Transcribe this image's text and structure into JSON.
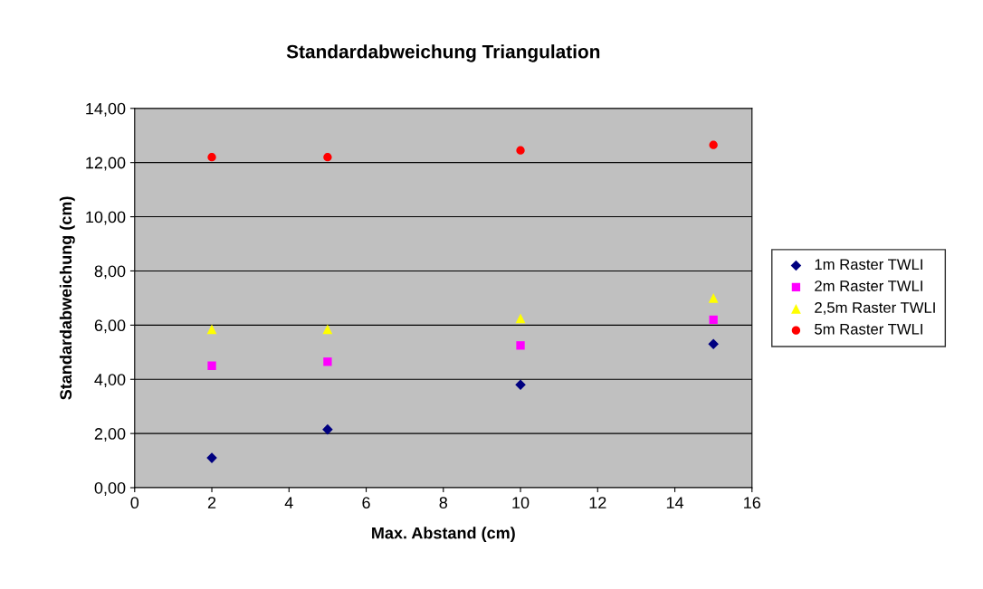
{
  "chart_data": {
    "type": "scatter",
    "title": "Standardabweichung Triangulation",
    "xlabel": "Max. Abstand (cm)",
    "ylabel": "Standardabweichung (cm)",
    "x": [
      2,
      5,
      10,
      15
    ],
    "series": [
      {
        "name": "1m Raster TWLI",
        "color": "#000080",
        "marker": "diamond",
        "values": [
          1.1,
          2.15,
          3.8,
          5.3
        ]
      },
      {
        "name": "2m Raster TWLI",
        "color": "#ff00ff",
        "marker": "square",
        "values": [
          4.5,
          4.65,
          5.25,
          6.2
        ]
      },
      {
        "name": "2,5m Raster TWLI",
        "color": "#ffff00",
        "marker": "triangle",
        "values": [
          5.85,
          5.85,
          6.25,
          7.0
        ]
      },
      {
        "name": "5m Raster TWLI",
        "color": "#ff0000",
        "marker": "circle",
        "values": [
          12.2,
          12.2,
          12.45,
          12.65
        ]
      }
    ],
    "xlim": [
      0,
      16
    ],
    "xticks": [
      0,
      2,
      4,
      6,
      8,
      10,
      12,
      14,
      16
    ],
    "ylim": [
      0,
      14
    ],
    "yticks": [
      {
        "value": 0,
        "label": "0,00"
      },
      {
        "value": 2,
        "label": "2,00"
      },
      {
        "value": 4,
        "label": "4,00"
      },
      {
        "value": 6,
        "label": "6,00"
      },
      {
        "value": 8,
        "label": "8,00"
      },
      {
        "value": 10,
        "label": "10,00"
      },
      {
        "value": 12,
        "label": "12,00"
      },
      {
        "value": 14,
        "label": "14,00"
      }
    ],
    "grid": "y",
    "legend": "right"
  }
}
